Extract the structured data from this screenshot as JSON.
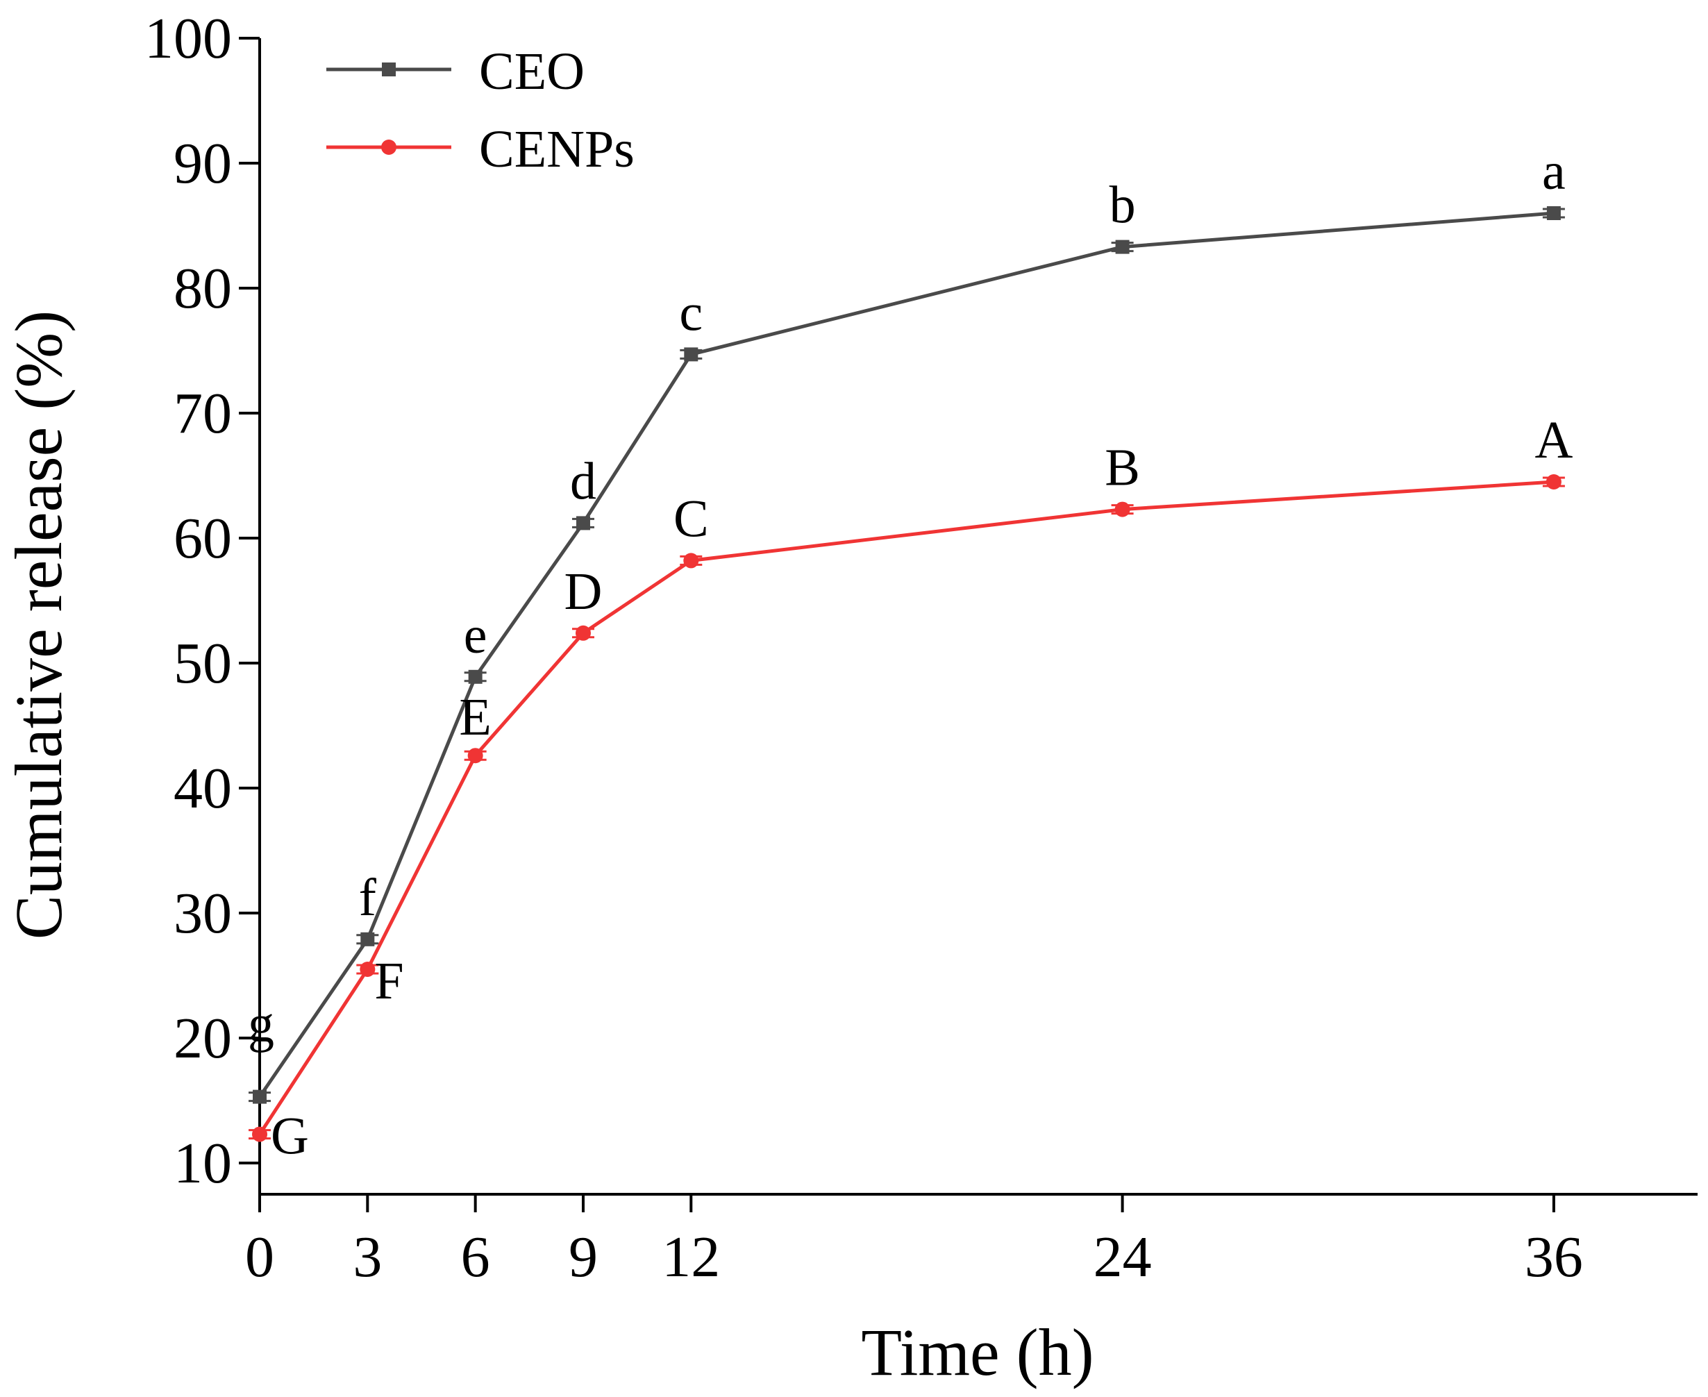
{
  "chart_data": {
    "type": "line",
    "xlabel": "Time (h)",
    "ylabel": "Cumulative release (%)",
    "xlim": [
      0,
      40
    ],
    "ylim": [
      7.5,
      100
    ],
    "x_ticks": [
      0,
      3,
      6,
      9,
      12,
      24,
      36
    ],
    "x_tick_labels": [
      "0",
      "3",
      "6",
      "9",
      "12",
      "24",
      "36"
    ],
    "y_ticks": [
      10,
      20,
      30,
      40,
      50,
      60,
      70,
      80,
      90,
      100
    ],
    "y_tick_labels": [
      "10",
      "20",
      "30",
      "40",
      "50",
      "60",
      "70",
      "80",
      "90",
      "100"
    ],
    "grid": false,
    "legend_position": "top-left",
    "x": [
      0,
      3,
      6,
      9,
      12,
      24,
      36
    ],
    "series": [
      {
        "name": "CEO",
        "color": "#4a4a4a",
        "marker": "square",
        "values": [
          15.3,
          27.9,
          48.9,
          61.2,
          74.7,
          83.3,
          86.0
        ],
        "labels": [
          "g",
          "f",
          "e",
          "d",
          "c",
          "b",
          "a"
        ]
      },
      {
        "name": "CENPs",
        "color": "#f03434",
        "marker": "circle",
        "values": [
          12.3,
          25.5,
          42.6,
          52.4,
          58.2,
          62.3,
          64.5
        ],
        "labels": [
          "G",
          "F",
          "E",
          "D",
          "C",
          "B",
          "A"
        ]
      }
    ]
  }
}
